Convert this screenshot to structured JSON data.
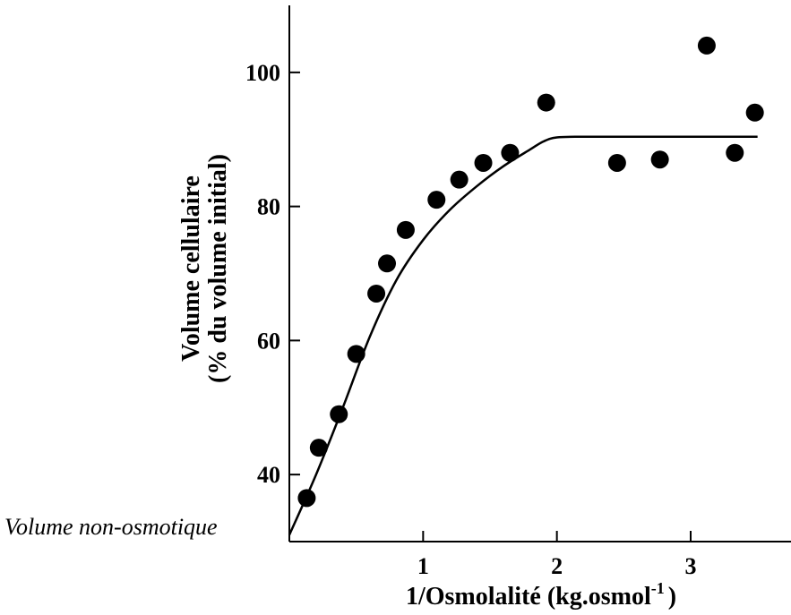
{
  "chart_data": {
    "type": "scatter",
    "xlabel": "1/Osmolalité (kg.osmol",
    "xlabel_superscript": "-1",
    "xlabel_suffix": ")",
    "ylabel_line1": "Volume cellulaire",
    "ylabel_line2": "(% du volume initial)",
    "annotation": "Volume non-osmotique",
    "xlim": [
      0,
      3.75
    ],
    "ylim": [
      30,
      110
    ],
    "xticks": [
      {
        "value": 1,
        "label": "1"
      },
      {
        "value": 2,
        "label": "2"
      },
      {
        "value": 3,
        "label": "3"
      }
    ],
    "yticks": [
      {
        "value": 40,
        "label": "40"
      },
      {
        "value": 60,
        "label": "60"
      },
      {
        "value": 80,
        "label": "80"
      },
      {
        "value": 100,
        "label": "100"
      }
    ],
    "grid": false,
    "series": [
      {
        "points": [
          [
            0.13,
            36.5
          ],
          [
            0.22,
            44.0
          ],
          [
            0.37,
            49.0
          ],
          [
            0.5,
            58.0
          ],
          [
            0.65,
            67.0
          ],
          [
            0.73,
            71.5
          ],
          [
            0.87,
            76.5
          ],
          [
            1.1,
            81.0
          ],
          [
            1.27,
            84.0
          ],
          [
            1.45,
            86.5
          ],
          [
            1.65,
            88.0
          ],
          [
            1.92,
            95.5
          ],
          [
            2.45,
            86.5
          ],
          [
            2.77,
            87.0
          ],
          [
            3.12,
            104.0
          ],
          [
            3.33,
            88.0
          ],
          [
            3.48,
            94.0
          ]
        ]
      }
    ],
    "fit_curve": [
      [
        0.0,
        31.0
      ],
      [
        0.2,
        40.0
      ],
      [
        0.4,
        50.0
      ],
      [
        0.6,
        60.5
      ],
      [
        0.8,
        69.0
      ],
      [
        1.0,
        75.0
      ],
      [
        1.2,
        79.5
      ],
      [
        1.4,
        83.0
      ],
      [
        1.6,
        86.0
      ],
      [
        1.8,
        88.5
      ],
      [
        1.9,
        89.7
      ],
      [
        2.0,
        90.3
      ],
      [
        2.2,
        90.4
      ],
      [
        2.6,
        90.4
      ],
      [
        3.0,
        90.4
      ],
      [
        3.5,
        90.4
      ]
    ]
  }
}
